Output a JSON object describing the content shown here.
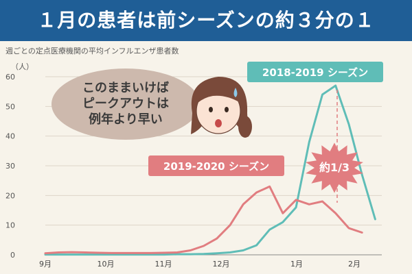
{
  "header": {
    "title": "１月の患者は前シーズンの約３分の１"
  },
  "subtitle": "週ごとの定点医療機関の平均インフルエンザ患者数",
  "colors": {
    "header_bg": "#1f5e96",
    "teal": "#5fbdb7",
    "pink": "#e17d80",
    "bubble": "#cdb9ad"
  },
  "annotations": {
    "bubble_lines": [
      "このままいけば",
      "ピークアウトは",
      "例年より早い"
    ],
    "burst": "約1/3"
  },
  "chart_data": {
    "type": "line",
    "title": "週ごとの定点医療機関の平均インフルエンザ患者数",
    "ylabel": "（人）",
    "xlabel": "",
    "ylim": [
      0,
      60
    ],
    "yticks": [
      0,
      10,
      20,
      30,
      40,
      50,
      60
    ],
    "xtick_labels": [
      "9月",
      "10月",
      "11月",
      "12月",
      "1月",
      "2月"
    ],
    "grid": true,
    "series": [
      {
        "name": "2018-2019 シーズン",
        "color": "#5fbdb7",
        "values": [
          0.1,
          0.1,
          0.1,
          0.1,
          0.1,
          0.1,
          0.1,
          0.1,
          0.1,
          0.1,
          0.2,
          0.2,
          0.3,
          0.5,
          0.8,
          1.5,
          3.2,
          8.5,
          11,
          16,
          38,
          54,
          57,
          44,
          27,
          12
        ]
      },
      {
        "name": "2019-2020 シーズン",
        "color": "#e17d80",
        "values": [
          0.5,
          0.8,
          0.9,
          0.8,
          0.7,
          0.6,
          0.6,
          0.6,
          0.6,
          0.7,
          0.8,
          1.5,
          3,
          5.5,
          10,
          17,
          21,
          23,
          14,
          18.5,
          17,
          18,
          14,
          9,
          7.5
        ]
      }
    ]
  }
}
